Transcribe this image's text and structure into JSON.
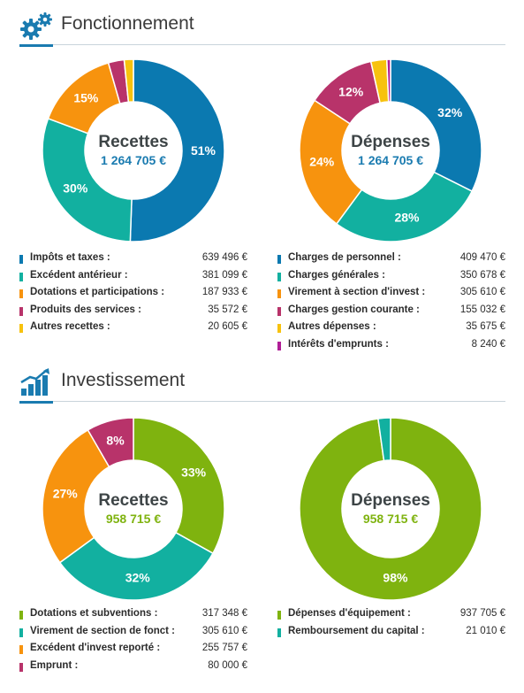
{
  "colors": {
    "blue": "#0b79b0",
    "teal": "#12b0a0",
    "orange": "#f7930e",
    "crimson": "#b8336a",
    "yellow": "#f7c20e",
    "purple": "#b01e96",
    "green": "#7fb30f",
    "recettes_fonct_value": "#1a7bb0",
    "invest_value": "#7fb30f"
  },
  "sections": {
    "fonctionnement": {
      "title": "Fonctionnement",
      "icon": "gears-icon"
    },
    "investissement": {
      "title": "Investissement",
      "icon": "growth-chart-icon"
    }
  },
  "chart_data": [
    {
      "id": "fonct-recettes",
      "type": "pie",
      "variant": "donut",
      "title": "Recettes",
      "total": "1 264 705 €",
      "series": [
        {
          "name": "Impôts et taxes :",
          "value": 639496,
          "amount": "639 496 €",
          "pct_label": "51%",
          "color": "#0b79b0"
        },
        {
          "name": "Excédent antérieur :",
          "value": 381099,
          "amount": "381 099 €",
          "pct_label": "30%",
          "color": "#12b0a0"
        },
        {
          "name": "Dotations et participations :",
          "value": 187933,
          "amount": "187 933 €",
          "pct_label": "15%",
          "color": "#f7930e"
        },
        {
          "name": "Produits des services :",
          "value": 35572,
          "amount": "35 572 €",
          "pct_label": "",
          "color": "#b8336a"
        },
        {
          "name": "Autres recettes :",
          "value": 20605,
          "amount": "20 605 €",
          "pct_label": "",
          "color": "#f7c20e"
        }
      ]
    },
    {
      "id": "fonct-depenses",
      "type": "pie",
      "variant": "donut",
      "title": "Dépenses",
      "total": "1 264 705 €",
      "series": [
        {
          "name": "Charges de personnel :",
          "value": 409470,
          "amount": "409 470 €",
          "pct_label": "32%",
          "color": "#0b79b0"
        },
        {
          "name": "Charges générales :",
          "value": 350678,
          "amount": "350 678 €",
          "pct_label": "28%",
          "color": "#12b0a0"
        },
        {
          "name": "Virement à section d'invest :",
          "value": 305610,
          "amount": "305 610 €",
          "pct_label": "24%",
          "color": "#f7930e"
        },
        {
          "name": "Charges gestion courante :",
          "value": 155032,
          "amount": "155 032 €",
          "pct_label": "12%",
          "color": "#b8336a"
        },
        {
          "name": "Autres dépenses :",
          "value": 35675,
          "amount": "35 675 €",
          "pct_label": "",
          "color": "#f7c20e"
        },
        {
          "name": "Intérêts d'emprunts :",
          "value": 8240,
          "amount": "8 240 €",
          "pct_label": "",
          "color": "#b01e96"
        }
      ]
    },
    {
      "id": "invest-recettes",
      "type": "pie",
      "variant": "donut",
      "title": "Recettes",
      "total": "958 715 €",
      "series": [
        {
          "name": "Dotations et subventions :",
          "value": 317348,
          "amount": "317 348 €",
          "pct_label": "33%",
          "color": "#7fb30f"
        },
        {
          "name": "Virement de section de fonct :",
          "value": 305610,
          "amount": "305 610 €",
          "pct_label": "32%",
          "color": "#12b0a0"
        },
        {
          "name": "Excédent d'invest reporté :",
          "value": 255757,
          "amount": "255 757 €",
          "pct_label": "27%",
          "color": "#f7930e"
        },
        {
          "name": "Emprunt :",
          "value": 80000,
          "amount": "80 000 €",
          "pct_label": "8%",
          "color": "#b8336a"
        }
      ]
    },
    {
      "id": "invest-depenses",
      "type": "pie",
      "variant": "donut",
      "title": "Dépenses",
      "total": "958 715 €",
      "series": [
        {
          "name": "Dépenses d'équipement :",
          "value": 937705,
          "amount": "937 705 €",
          "pct_label": "98%",
          "color": "#7fb30f"
        },
        {
          "name": "Remboursement du capital :",
          "value": 21010,
          "amount": "21 010 €",
          "pct_label": "",
          "color": "#12b0a0"
        }
      ]
    }
  ]
}
